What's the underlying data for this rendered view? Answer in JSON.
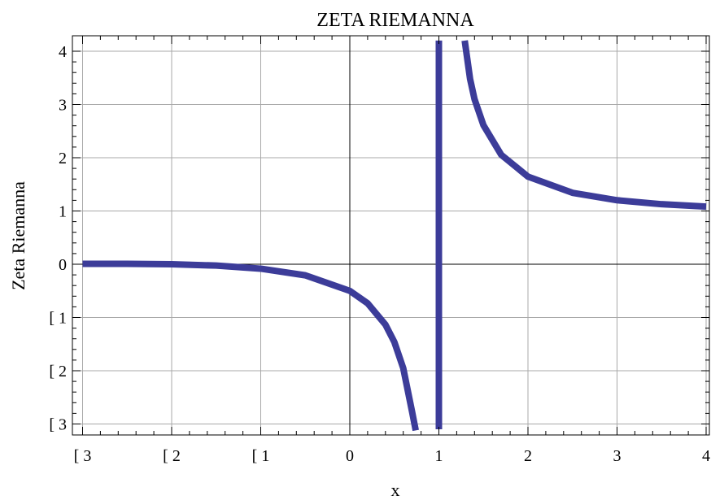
{
  "chart_data": {
    "type": "line",
    "title": "ZETA RIEMANNA",
    "xlabel": "x",
    "ylabel": "Zeta Riemanna",
    "xlim": [
      -3,
      4
    ],
    "ylim": [
      -3.2,
      4.25
    ],
    "grid": true,
    "series_color": "#3c3c99",
    "x_ticks": [
      {
        "value": -3,
        "label": "[ 3"
      },
      {
        "value": -2,
        "label": "[ 2"
      },
      {
        "value": -1,
        "label": "[ 1"
      },
      {
        "value": 0,
        "label": "0"
      },
      {
        "value": 1,
        "label": "1"
      },
      {
        "value": 2,
        "label": "2"
      },
      {
        "value": 3,
        "label": "3"
      },
      {
        "value": 4,
        "label": "4"
      }
    ],
    "y_ticks": [
      {
        "value": -3,
        "label": "[ 3"
      },
      {
        "value": -2,
        "label": "[ 2"
      },
      {
        "value": -1,
        "label": "[ 1"
      },
      {
        "value": 0,
        "label": "0"
      },
      {
        "value": 1,
        "label": "1"
      },
      {
        "value": 2,
        "label": "2"
      },
      {
        "value": 3,
        "label": "3"
      },
      {
        "value": 4,
        "label": "4"
      }
    ],
    "series": [
      {
        "x": [
          -3,
          -2.5,
          -2,
          -1.5,
          -1,
          -0.5,
          0,
          0.2,
          0.4,
          0.5,
          0.6,
          0.7,
          0.74
        ],
        "y": [
          0.0083,
          0.0073,
          0,
          -0.0255,
          -0.0833,
          -0.2078,
          -0.5,
          -0.7339,
          -1.1347,
          -1.4604,
          -1.9526,
          -2.7783,
          -3.12
        ]
      },
      {
        "x": [
          1,
          1
        ],
        "y": [
          -3.1,
          4.2
        ]
      },
      {
        "x": [
          1.29,
          1.35,
          1.4,
          1.5,
          1.7,
          2,
          2.5,
          3,
          3.5,
          4
        ],
        "y": [
          4.2,
          3.48,
          3.1,
          2.612,
          2.054,
          1.645,
          1.341,
          1.202,
          1.127,
          1.082
        ]
      }
    ]
  }
}
